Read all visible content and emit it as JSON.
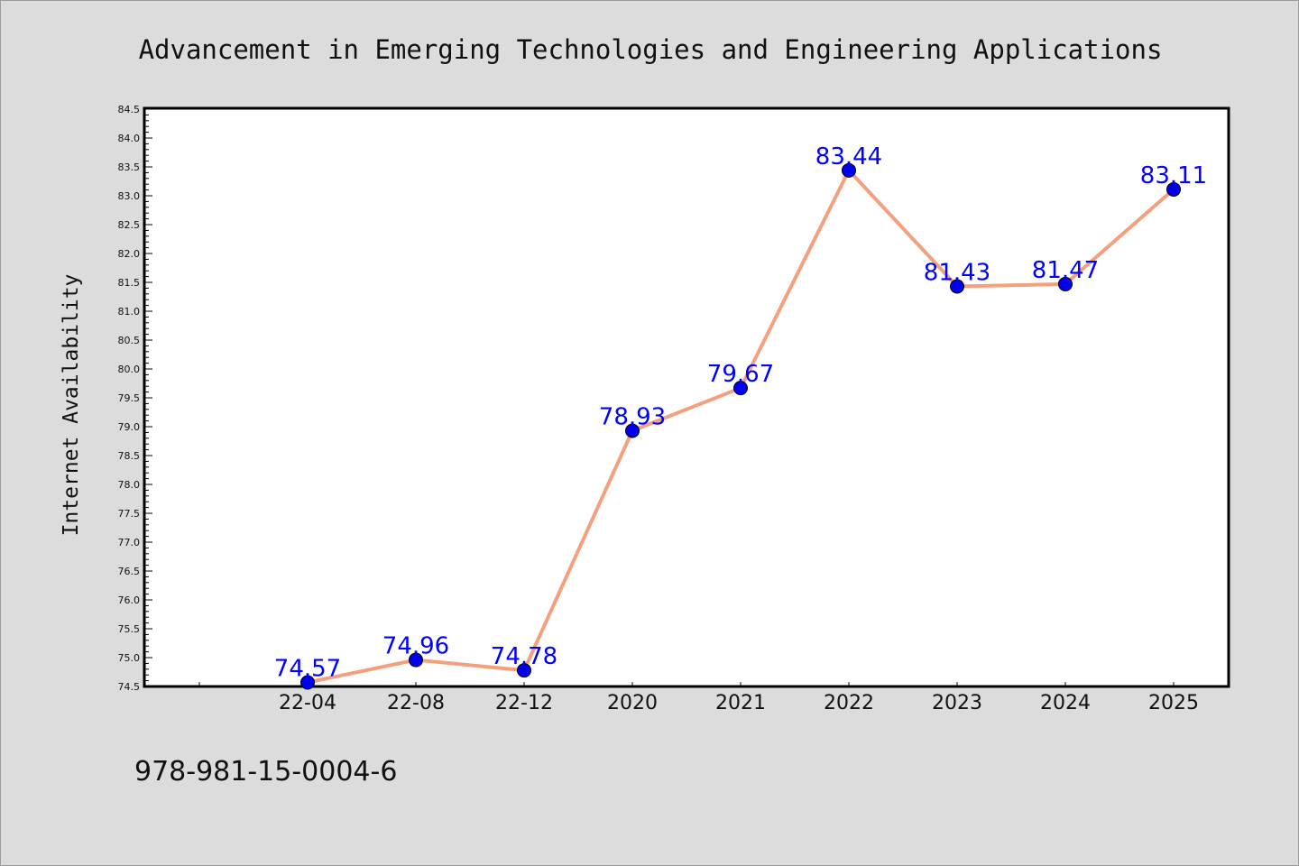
{
  "chart_data": {
    "type": "line",
    "title": "Advancement in Emerging Technologies and Engineering Applications",
    "xlabel": "",
    "ylabel": "Internet Availability",
    "categories": [
      "22-04",
      "22-08",
      "22-12",
      "2020",
      "2021",
      "2022",
      "2023",
      "2024",
      "2025"
    ],
    "series": [
      {
        "values": [
          74.57,
          74.96,
          74.78,
          78.93,
          79.67,
          83.44,
          81.43,
          81.47,
          83.11
        ]
      }
    ],
    "data_labels": [
      "74.57",
      "74.96",
      "74.78",
      "78.93",
      "79.67",
      "83.44",
      "81.43",
      "81.47",
      "83.11"
    ],
    "ylim": [
      74.5,
      84.5
    ],
    "y_major_step": 0.5,
    "y_ticks": [
      "74.5",
      "75.0",
      "75.5",
      "76.0",
      "76.5",
      "77.0",
      "77.5",
      "78.0",
      "78.5",
      "79.0",
      "79.5",
      "80.0",
      "80.5",
      "81.0",
      "81.5",
      "82.0",
      "82.5",
      "83.0",
      "83.5",
      "84.0",
      "84.5"
    ],
    "grid": false,
    "legend": "none",
    "line_color": "#f4a07e",
    "marker_color": "#0000ee",
    "label_color": "#0000ff"
  },
  "footnote": "978-981-15-0004-6"
}
